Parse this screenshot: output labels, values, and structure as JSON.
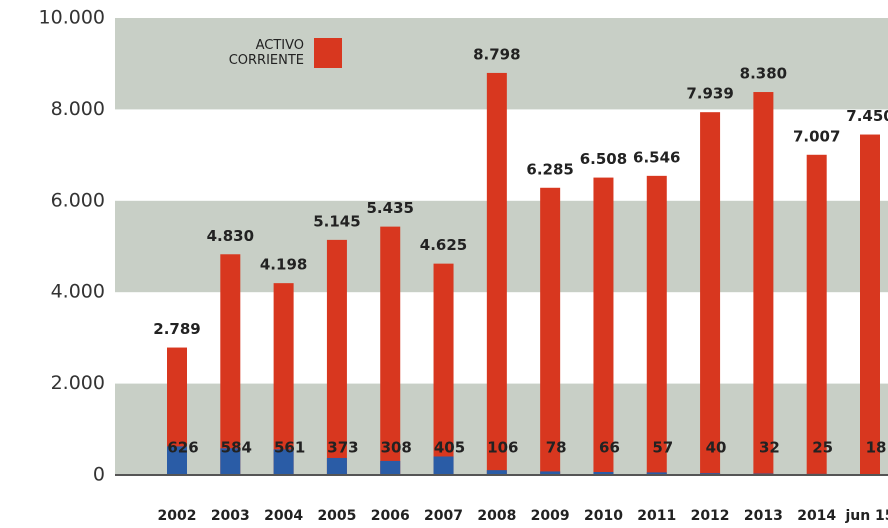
{
  "chart_data": {
    "type": "bar",
    "overlay": true,
    "categories": [
      "2002",
      "2003",
      "2004",
      "2005",
      "2006",
      "2007",
      "2008",
      "2009",
      "2010",
      "2011",
      "2012",
      "2013",
      "2014",
      "jun 15"
    ],
    "series": [
      {
        "name": "ACTIVO CORRIENTE",
        "color": "#d8371f",
        "values": [
          2789,
          4830,
          4198,
          5145,
          5435,
          4625,
          8798,
          6285,
          6508,
          6546,
          7939,
          8380,
          7007,
          7450
        ],
        "value_labels": [
          "2.789",
          "4.830",
          "4.198",
          "5.145",
          "5.435",
          "4.625",
          "8.798",
          "6.285",
          "6.508",
          "6.546",
          "7.939",
          "8.380",
          "7.007",
          "7.450"
        ]
      },
      {
        "color": "#2a5ca6",
        "values": [
          626,
          584,
          561,
          373,
          308,
          405,
          106,
          78,
          66,
          57,
          40,
          32,
          25,
          18
        ]
      }
    ],
    "ylim": [
      0,
      10000
    ],
    "yticks": [
      0,
      {
        "value": 2000,
        "label": "2.000"
      },
      {
        "value": 4000,
        "label": "4.000"
      },
      {
        "value": 6000,
        "label": "6.000"
      },
      {
        "value": 8000,
        "label": "8.000"
      },
      {
        "value": 10000,
        "label": "10.000"
      }
    ],
    "grid": "bands",
    "band_color": "#c8cfc6",
    "legend": "top-left"
  }
}
